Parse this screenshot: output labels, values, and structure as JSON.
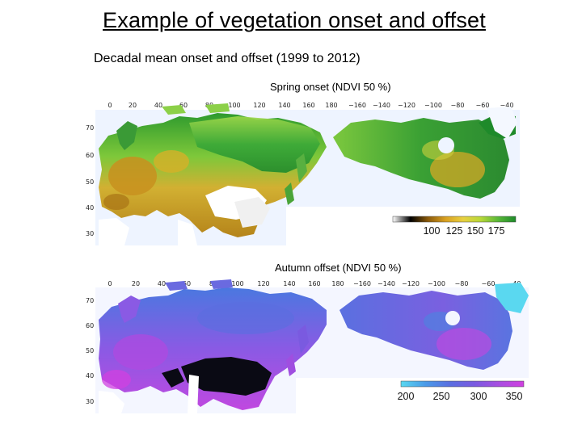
{
  "slide": {
    "title": "Example of vegetation onset and offset",
    "subtitle": "Decadal mean onset and offset (1999 to 2012)"
  },
  "maps": [
    {
      "caption": "Spring onset (NDVI 50 %)",
      "lon_ticks": [
        "0",
        "20",
        "40",
        "60",
        "80",
        "100",
        "120",
        "140",
        "160",
        "180",
        "−160",
        "−140",
        "−120",
        "−100",
        "−80",
        "−60",
        "−40"
      ],
      "lat_ticks": [
        "70",
        "60",
        "50",
        "40",
        "30"
      ],
      "colorbar": {
        "labels": [
          "100",
          "125",
          "150",
          "175"
        ],
        "values": [
          100,
          125,
          150,
          175
        ],
        "colors": [
          "#ffffff",
          "#000000",
          "#8b5a0a",
          "#d9a020",
          "#e8d040",
          "#b8d838",
          "#58b838",
          "#1e8a2a"
        ]
      }
    },
    {
      "caption": "Autumn offset (NDVI 50 %)",
      "lon_ticks": [
        "0",
        "20",
        "40",
        "60",
        "80",
        "100",
        "120",
        "140",
        "160",
        "180",
        "−160",
        "−140",
        "−120",
        "−100",
        "−80",
        "−60",
        "−40"
      ],
      "lat_ticks": [
        "70",
        "60",
        "50",
        "40",
        "30"
      ],
      "colorbar": {
        "labels": [
          "200",
          "250",
          "300",
          "350"
        ],
        "values": [
          200,
          250,
          300,
          350
        ],
        "colors": [
          "#5ad8f0",
          "#4a9ae8",
          "#5a6ee0",
          "#7a5ae0",
          "#a84ee0",
          "#d040e0"
        ]
      }
    }
  ]
}
